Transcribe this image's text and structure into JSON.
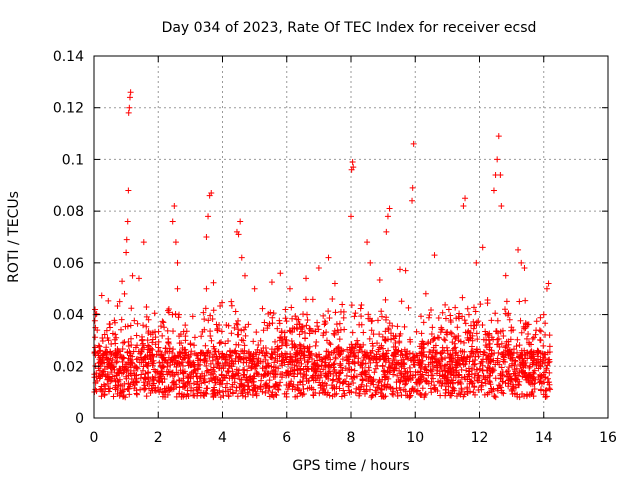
{
  "chart_data": {
    "type": "scatter",
    "title": "Day 034 of 2023, Rate Of TEC Index for receiver ecsd",
    "xlabel": "GPS time / hours",
    "ylabel": "ROTI / TECUs",
    "xlim": [
      0,
      16
    ],
    "ylim": [
      0,
      0.14
    ],
    "xticks": [
      0,
      2,
      4,
      6,
      8,
      10,
      12,
      14,
      16
    ],
    "xtick_labels": [
      "0",
      "2",
      "4",
      "6",
      "8",
      "10",
      "12",
      "14",
      "16"
    ],
    "yticks": [
      0,
      0.02,
      0.04,
      0.06,
      0.08,
      0.1,
      0.12,
      0.14
    ],
    "ytick_labels": [
      "0",
      "0.02",
      "0.04",
      "0.06",
      "0.08",
      "0.1",
      "0.12",
      "0.14"
    ],
    "grid": true,
    "marker": "+",
    "color": "#ff0000",
    "series": [
      {
        "name": "ROTI",
        "note": "dense scatter from 0 to ~14.2 h; baseline 0.005-0.03 TECU/s; notable spikes listed",
        "points": [
          [
            0.05,
            0.04
          ],
          [
            0.1,
            0.034
          ],
          [
            0.15,
            0.028
          ],
          [
            0.2,
            0.022
          ],
          [
            0.3,
            0.018
          ],
          [
            0.5,
            0.035
          ],
          [
            0.8,
            0.045
          ],
          [
            0.95,
            0.048
          ],
          [
            1.0,
            0.064
          ],
          [
            1.02,
            0.069
          ],
          [
            1.05,
            0.076
          ],
          [
            1.07,
            0.088
          ],
          [
            1.08,
            0.118
          ],
          [
            1.1,
            0.12
          ],
          [
            1.12,
            0.124
          ],
          [
            1.14,
            0.126
          ],
          [
            1.2,
            0.055
          ],
          [
            1.4,
            0.054
          ],
          [
            1.55,
            0.068
          ],
          [
            1.7,
            0.038
          ],
          [
            2.45,
            0.076
          ],
          [
            2.5,
            0.082
          ],
          [
            2.55,
            0.068
          ],
          [
            2.6,
            0.06
          ],
          [
            2.6,
            0.05
          ],
          [
            3.5,
            0.07
          ],
          [
            3.55,
            0.078
          ],
          [
            3.6,
            0.086
          ],
          [
            3.65,
            0.087
          ],
          [
            3.5,
            0.05
          ],
          [
            4.45,
            0.072
          ],
          [
            4.5,
            0.071
          ],
          [
            4.55,
            0.076
          ],
          [
            4.6,
            0.062
          ],
          [
            4.7,
            0.055
          ],
          [
            5.0,
            0.05
          ],
          [
            5.8,
            0.056
          ],
          [
            6.1,
            0.05
          ],
          [
            6.6,
            0.054
          ],
          [
            7.0,
            0.058
          ],
          [
            7.3,
            0.062
          ],
          [
            7.5,
            0.052
          ],
          [
            8.0,
            0.078
          ],
          [
            8.02,
            0.096
          ],
          [
            8.05,
            0.099
          ],
          [
            8.07,
            0.097
          ],
          [
            8.5,
            0.068
          ],
          [
            8.6,
            0.06
          ],
          [
            9.1,
            0.072
          ],
          [
            9.15,
            0.078
          ],
          [
            9.2,
            0.081
          ],
          [
            9.7,
            0.057
          ],
          [
            9.9,
            0.084
          ],
          [
            9.92,
            0.089
          ],
          [
            9.95,
            0.106
          ],
          [
            10.6,
            0.063
          ],
          [
            11.5,
            0.082
          ],
          [
            11.55,
            0.085
          ],
          [
            11.9,
            0.06
          ],
          [
            12.1,
            0.066
          ],
          [
            12.45,
            0.088
          ],
          [
            12.5,
            0.094
          ],
          [
            12.55,
            0.1
          ],
          [
            12.6,
            0.109
          ],
          [
            12.65,
            0.094
          ],
          [
            12.68,
            0.082
          ],
          [
            13.2,
            0.065
          ],
          [
            13.3,
            0.06
          ],
          [
            13.4,
            0.058
          ],
          [
            14.0,
            0.04
          ],
          [
            14.1,
            0.05
          ],
          [
            14.15,
            0.052
          ]
        ]
      }
    ]
  }
}
